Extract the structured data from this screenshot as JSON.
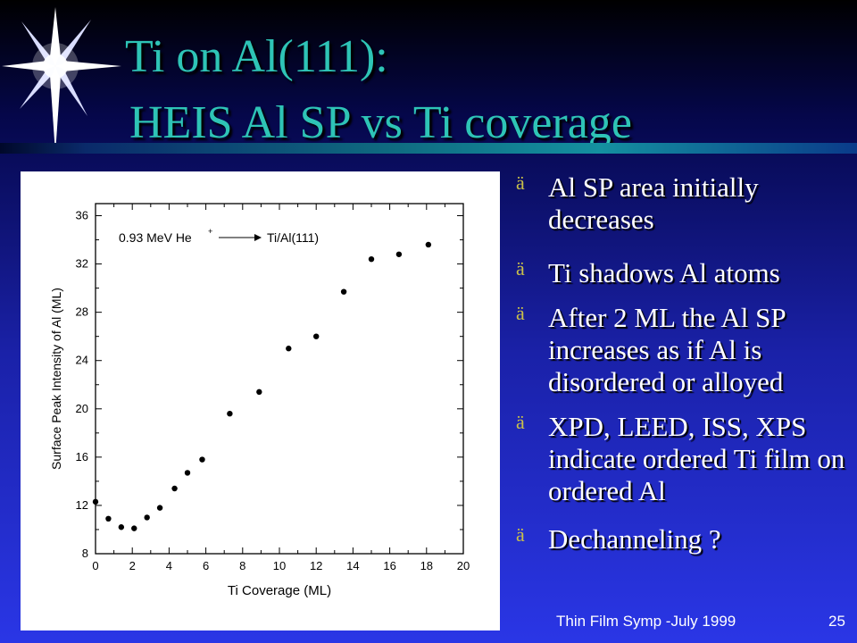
{
  "slide": {
    "title_line1": "Ti on Al(111):",
    "title_line2": "HEIS Al SP vs Ti coverage",
    "footer": "Thin Film  Symp -July 1999",
    "slide_number": "25",
    "accent_title_color": "#2ec4b6",
    "bullet_marker_color": "#c9c04a",
    "bullet_marker": "ä"
  },
  "bullets": [
    "Al SP area initially decreases",
    "Ti shadows Al atoms",
    "After 2 ML the Al SP increases as if Al is disordered or alloyed",
    "XPD, LEED, ISS, XPS indicate ordered Ti film on ordered Al",
    "Dechanneling ?"
  ],
  "chart_data": {
    "type": "scatter",
    "title": "",
    "annotation": {
      "beam": "0.93 MeV He",
      "superscript": "+",
      "target": "Ti/Al(111)"
    },
    "xlabel": "Ti Coverage (ML)",
    "ylabel": "Surface Peak Intensity of Al (ML)",
    "xlim": [
      0,
      20
    ],
    "ylim": [
      8,
      37
    ],
    "xticks": [
      0,
      2,
      4,
      6,
      8,
      10,
      12,
      14,
      16,
      18,
      20
    ],
    "yticks": [
      8,
      12,
      16,
      20,
      24,
      28,
      32,
      36
    ],
    "grid": false,
    "series": [
      {
        "x": [
          0,
          0.7,
          1.4,
          2.1,
          2.8,
          3.5,
          4.3,
          5.0,
          5.8,
          7.3,
          8.9,
          10.5,
          12.0,
          13.5,
          15.0,
          16.5,
          18.1
        ],
        "y": [
          12.3,
          10.9,
          10.2,
          10.1,
          11.0,
          11.8,
          13.4,
          14.7,
          15.8,
          19.6,
          21.4,
          25.0,
          26.0,
          29.7,
          32.4,
          32.8,
          33.6
        ]
      }
    ]
  }
}
